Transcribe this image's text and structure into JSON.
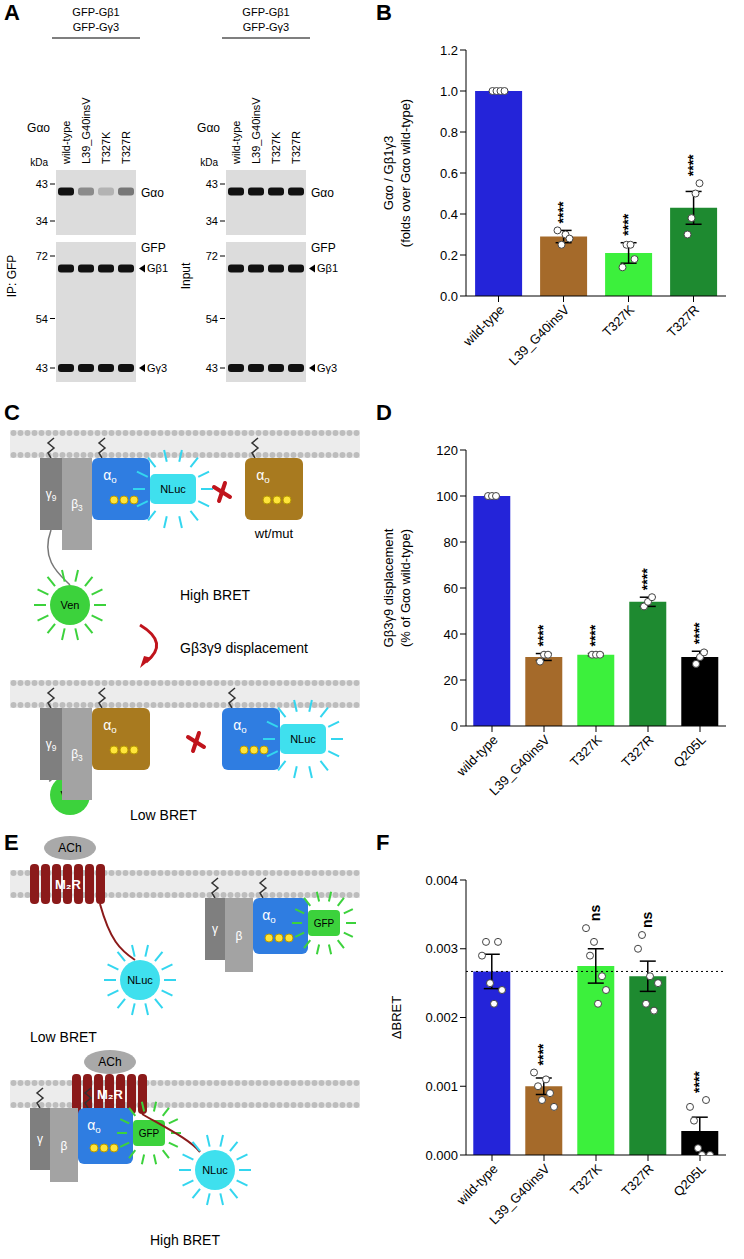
{
  "panel_A": {
    "label": "A",
    "header": [
      "GFP-Gβ1",
      "GFP-Gγ3"
    ],
    "lane_title": "Gαo",
    "lanes": [
      "wild-type",
      "L39_G40insV",
      "T327K",
      "T327R"
    ],
    "marker_unit": "kDa",
    "blots": [
      {
        "name": "IP: GFP",
        "strips": [
          {
            "label": "Gαo",
            "markers": [
              43,
              34
            ],
            "bands": [
              {
                "kda": 41,
                "intensity": [
                  1,
                  0.4,
                  0.2,
                  0.5
                ]
              }
            ]
          },
          {
            "label": "GFP",
            "markers": [
              72,
              54,
              43
            ],
            "bands": [
              {
                "label": "Gβ1",
                "kda": 68,
                "intensity": [
                  1,
                  1,
                  1,
                  1
                ]
              },
              {
                "label": "Gγ3",
                "kda": 43,
                "intensity": [
                  1,
                  1,
                  1,
                  1
                ]
              }
            ]
          }
        ]
      },
      {
        "name": "Input",
        "strips": [
          {
            "label": "Gαo",
            "markers": [
              43,
              34
            ],
            "bands": [
              {
                "kda": 41,
                "intensity": [
                  1,
                  1,
                  1,
                  1
                ]
              }
            ]
          },
          {
            "label": "GFP",
            "markers": [
              72,
              54,
              43
            ],
            "bands": [
              {
                "label": "Gβ1",
                "kda": 68,
                "intensity": [
                  1,
                  1,
                  1,
                  1
                ]
              },
              {
                "label": "Gγ3",
                "kda": 43,
                "intensity": [
                  1,
                  1,
                  1,
                  1
                ]
              }
            ]
          }
        ]
      }
    ]
  },
  "panel_C": {
    "label": "C",
    "subunits": [
      "γ9",
      "β3",
      "αo"
    ],
    "donor": "NLuc",
    "acceptor": "Ven",
    "competitor": "wt/mut",
    "transition": "Gβ3γ9 displacement",
    "states": [
      "High BRET",
      "Low BRET"
    ]
  },
  "panel_E": {
    "label": "E",
    "ligand": "ACh",
    "receptor": "M₂R",
    "subunits": [
      "γ",
      "β",
      "αo"
    ],
    "donor": "NLuc",
    "acceptor": "GFP",
    "states": [
      "Low BRET",
      "High BRET"
    ]
  },
  "chart_data": [
    {
      "panel": "B",
      "type": "bar",
      "ylabel": [
        "Gαo / Gβ1γ3",
        "(folds over Gαo wild-type)"
      ],
      "categories": [
        "wild-type",
        "L39_G40insV",
        "T327K",
        "T327R"
      ],
      "values": [
        1.0,
        0.29,
        0.21,
        0.43
      ],
      "errors": [
        0,
        0.03,
        0.05,
        0.08
      ],
      "points": [
        [
          1,
          1,
          1,
          1
        ],
        [
          0.32,
          0.25,
          0.3,
          0.28
        ],
        [
          0.14,
          0.25,
          0.25,
          0.18
        ],
        [
          0.3,
          0.38,
          0.5,
          0.55
        ]
      ],
      "colors": [
        "#2424d9",
        "#a56a2a",
        "#3cf03c",
        "#1e8a30"
      ],
      "ylim": [
        0,
        1.2
      ],
      "yticks": [
        {
          "value": 0,
          "label": "0.0"
        },
        0.2,
        0.4,
        0.6,
        0.8,
        {
          "value": 1,
          "label": "1.0"
        },
        1.2
      ],
      "annotations": [
        {
          "category": "L39_G40insV",
          "text": "****"
        },
        {
          "category": "T327K",
          "text": "****"
        },
        {
          "category": "T327R",
          "text": "****"
        }
      ]
    },
    {
      "panel": "D",
      "type": "bar",
      "ylabel": [
        "Gβ3γ9 displacement",
        "(% of Gαo wild-type)"
      ],
      "categories": [
        "wild-type",
        "L39_G40insV",
        "T327K",
        "T327R",
        "Q205L"
      ],
      "values": [
        100,
        30,
        31,
        54,
        30
      ],
      "errors": [
        0,
        1.5,
        0.5,
        2,
        2.5
      ],
      "points": [
        [
          100,
          100,
          100
        ],
        [
          28,
          31,
          31
        ],
        [
          31,
          31,
          31
        ],
        [
          52,
          54,
          56
        ],
        [
          27,
          30,
          32
        ]
      ],
      "colors": [
        "#2424d9",
        "#a56a2a",
        "#3cf03c",
        "#1e8a30",
        "#000000"
      ],
      "ylim": [
        0,
        120
      ],
      "yticks": [
        0,
        20,
        40,
        60,
        80,
        100,
        120
      ],
      "annotations": [
        {
          "category": "L39_G40insV",
          "text": "****"
        },
        {
          "category": "T327K",
          "text": "****"
        },
        {
          "category": "T327R",
          "text": "****"
        },
        {
          "category": "Q205L",
          "text": "****"
        }
      ]
    },
    {
      "panel": "F",
      "type": "bar",
      "ylabel": [
        "ΔBRET"
      ],
      "categories": [
        "wild-type",
        "L39_G40insV",
        "T327K",
        "T327R",
        "Q205L"
      ],
      "values": [
        0.00267,
        0.001,
        0.00275,
        0.0026,
        0.00035
      ],
      "errors": [
        0.00025,
        0.00012,
        0.00025,
        0.00022,
        0.0002
      ],
      "points": [
        [
          0.0029,
          0.0031,
          0.0025,
          0.0022,
          0.0031,
          0.0024
        ],
        [
          0.0012,
          0.001,
          0.0008,
          0.0011,
          0.0009,
          0.0007
        ],
        [
          0.0033,
          0.0029,
          0.0031,
          0.0022,
          0.0026,
          0.0024
        ],
        [
          0.003,
          0.0032,
          0.0022,
          0.0026,
          0.0021,
          0.0025
        ],
        [
          0.0007,
          0.0005,
          0.0001,
          0,
          0.0008,
          0
        ]
      ],
      "colors": [
        "#2424d9",
        "#a56a2a",
        "#3cf03c",
        "#1e8a30",
        "#000000"
      ],
      "ylim": [
        0,
        0.004
      ],
      "yticks": [
        {
          "value": 0,
          "label": "0.000"
        },
        0.001,
        0.002,
        0.003,
        0.004
      ],
      "reference_line": 0.00267,
      "annotations": [
        {
          "category": "L39_G40insV",
          "text": "****"
        },
        {
          "category": "T327K",
          "text": "ns"
        },
        {
          "category": "T327R",
          "text": "ns"
        },
        {
          "category": "Q205L",
          "text": "****"
        }
      ]
    }
  ]
}
